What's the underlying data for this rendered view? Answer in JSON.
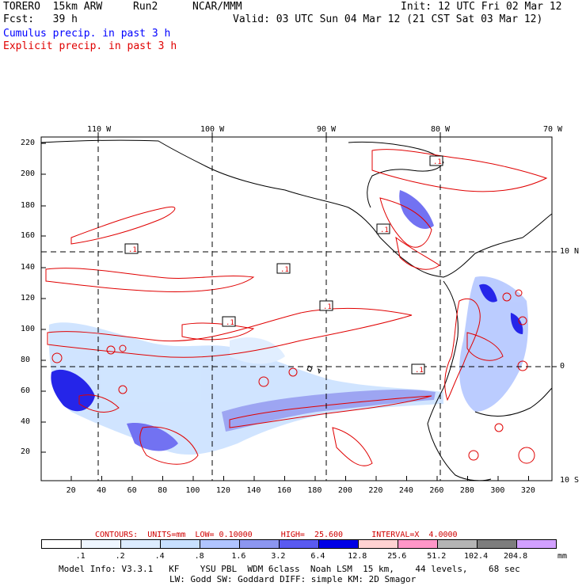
{
  "header": {
    "model": "TORERO  15km ARW",
    "run": "Run2",
    "org": "NCAR/MMM",
    "init": "Init: 12 UTC Fri 02 Mar 12",
    "fcst": "Fcst:   39 h",
    "valid": "Valid: 03 UTC Sun 04 Mar 12 (21 CST Sat 03 Mar 12)",
    "cumulus_label": "Cumulus precip. in past 3 h",
    "explicit_label": "Explicit precip. in past 3 h"
  },
  "colors": {
    "cumulus": "#0000ff",
    "explicit": "#e00000"
  },
  "map": {
    "top_lon_labels": [
      "110 W",
      "100 W",
      "90 W",
      "80 W",
      "70 W"
    ],
    "right_lat_labels": [
      "10 N",
      "0",
      "10 S"
    ],
    "left_ticks": [
      "220",
      "200",
      "180",
      "160",
      "140",
      "120",
      "100",
      "80",
      "60",
      "40",
      "20"
    ],
    "bottom_ticks": [
      "20",
      "40",
      "60",
      "80",
      "100",
      "120",
      "140",
      "160",
      "180",
      "200",
      "220",
      "240",
      "260",
      "280",
      "300",
      "320"
    ],
    "contour_boxes": [
      ".1",
      ".1",
      ".1",
      ".1",
      ".1",
      ".1",
      ".1"
    ]
  },
  "legend": {
    "contours_text": "CONTOURS:  UNITS=mm  LOW= 0.10000      HIGH=  25.600      INTERVAL=X  4.0000",
    "bins": [
      {
        "label": ".1",
        "color": "#ffffff"
      },
      {
        "label": ".2",
        "color": "#eef6ff"
      },
      {
        "label": ".4",
        "color": "#dcecff"
      },
      {
        "label": ".8",
        "color": "#c8e0ff"
      },
      {
        "label": "1.6",
        "color": "#b0c4ff"
      },
      {
        "label": "3.2",
        "color": "#8c96f0"
      },
      {
        "label": "6.4",
        "color": "#5a5af0"
      },
      {
        "label": "12.8",
        "color": "#0000e6"
      },
      {
        "label": "25.6",
        "color": "#ffd2d2"
      },
      {
        "label": "51.2",
        "color": "#ff96c8"
      },
      {
        "label": "102.4",
        "color": "#b4b4b4"
      },
      {
        "label": "204.8",
        "color": "#7d7d7d"
      },
      {
        "label": "",
        "color": "#d2a0ff"
      }
    ],
    "units": "mm"
  },
  "model_info": {
    "line1": "Model Info: V3.3.1   KF    YSU PBL  WDM 6class  Noah LSM  15 km,    44 levels,    68 sec",
    "line2": "LW: Godd SW: Goddard DIFF: simple KM: 2D Smagor"
  }
}
